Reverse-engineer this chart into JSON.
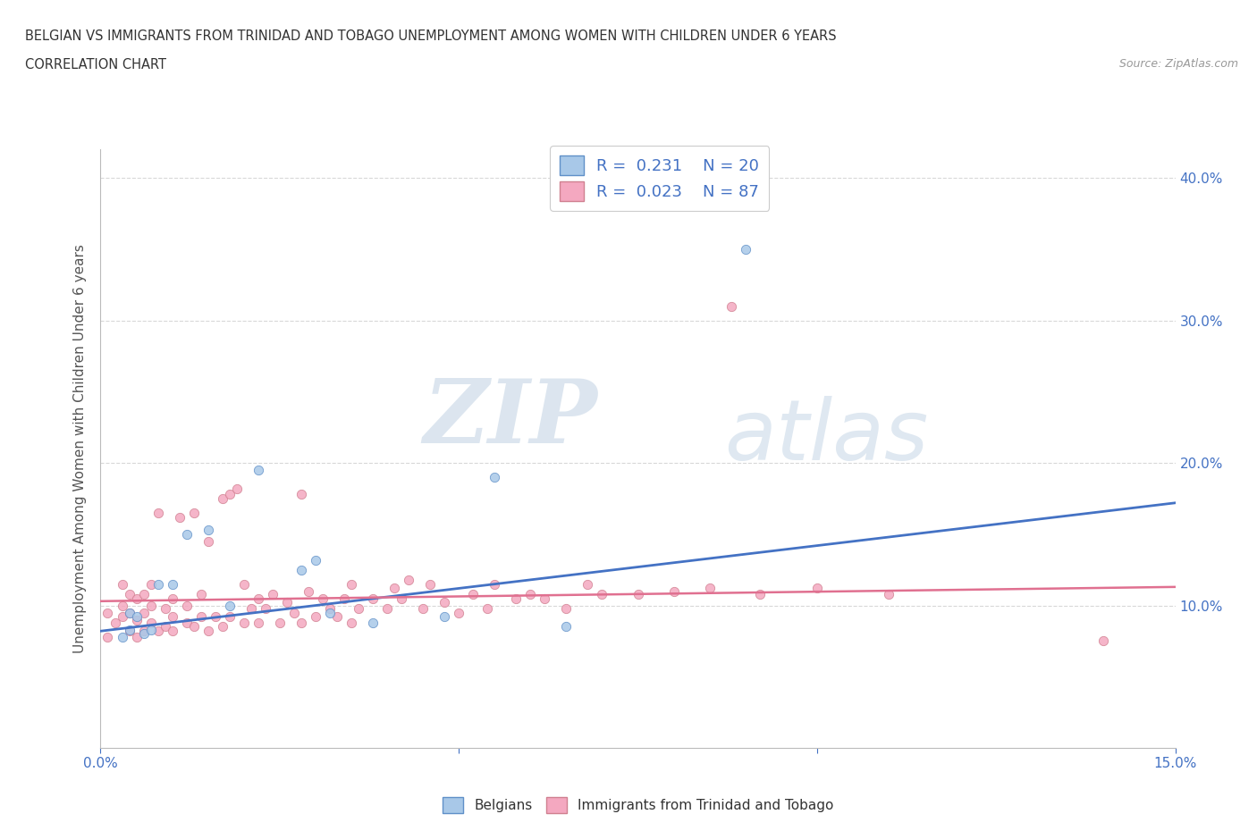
{
  "title_line1": "BELGIAN VS IMMIGRANTS FROM TRINIDAD AND TOBAGO UNEMPLOYMENT AMONG WOMEN WITH CHILDREN UNDER 6 YEARS",
  "title_line2": "CORRELATION CHART",
  "source_text": "Source: ZipAtlas.com",
  "ylabel": "Unemployment Among Women with Children Under 6 years",
  "xlim": [
    0.0,
    0.15
  ],
  "ylim": [
    0.0,
    0.42
  ],
  "belgian_color": "#a8c8e8",
  "tt_color": "#f4a8c0",
  "belgian_line_color": "#4472c4",
  "tt_line_color": "#e07090",
  "legend_R_belgian": "0.231",
  "legend_N_belgian": "20",
  "legend_R_tt": "0.023",
  "legend_N_tt": "87",
  "watermark_zip": "ZIP",
  "watermark_atlas": "atlas",
  "background_color": "#ffffff",
  "belgian_scatter_x": [
    0.003,
    0.004,
    0.004,
    0.005,
    0.006,
    0.007,
    0.008,
    0.01,
    0.012,
    0.015,
    0.018,
    0.022,
    0.028,
    0.03,
    0.032,
    0.038,
    0.048,
    0.055,
    0.065,
    0.09
  ],
  "belgian_scatter_y": [
    0.078,
    0.083,
    0.095,
    0.092,
    0.08,
    0.083,
    0.115,
    0.115,
    0.15,
    0.153,
    0.1,
    0.195,
    0.125,
    0.132,
    0.095,
    0.088,
    0.092,
    0.19,
    0.085,
    0.35
  ],
  "tt_scatter_x": [
    0.001,
    0.001,
    0.002,
    0.003,
    0.003,
    0.003,
    0.004,
    0.004,
    0.004,
    0.005,
    0.005,
    0.005,
    0.006,
    0.006,
    0.006,
    0.007,
    0.007,
    0.007,
    0.008,
    0.008,
    0.009,
    0.009,
    0.01,
    0.01,
    0.01,
    0.011,
    0.012,
    0.012,
    0.013,
    0.013,
    0.014,
    0.014,
    0.015,
    0.015,
    0.016,
    0.017,
    0.017,
    0.018,
    0.018,
    0.019,
    0.02,
    0.02,
    0.021,
    0.022,
    0.022,
    0.023,
    0.024,
    0.025,
    0.026,
    0.027,
    0.028,
    0.028,
    0.029,
    0.03,
    0.031,
    0.032,
    0.033,
    0.034,
    0.035,
    0.035,
    0.036,
    0.038,
    0.04,
    0.041,
    0.042,
    0.043,
    0.045,
    0.046,
    0.048,
    0.05,
    0.052,
    0.054,
    0.055,
    0.058,
    0.06,
    0.062,
    0.065,
    0.068,
    0.07,
    0.075,
    0.08,
    0.085,
    0.088,
    0.092,
    0.1,
    0.11,
    0.14
  ],
  "tt_scatter_y": [
    0.078,
    0.095,
    0.088,
    0.092,
    0.1,
    0.115,
    0.082,
    0.095,
    0.108,
    0.078,
    0.09,
    0.105,
    0.082,
    0.095,
    0.108,
    0.088,
    0.1,
    0.115,
    0.082,
    0.165,
    0.085,
    0.098,
    0.082,
    0.092,
    0.105,
    0.162,
    0.088,
    0.1,
    0.085,
    0.165,
    0.092,
    0.108,
    0.082,
    0.145,
    0.092,
    0.085,
    0.175,
    0.092,
    0.178,
    0.182,
    0.088,
    0.115,
    0.098,
    0.088,
    0.105,
    0.098,
    0.108,
    0.088,
    0.102,
    0.095,
    0.088,
    0.178,
    0.11,
    0.092,
    0.105,
    0.098,
    0.092,
    0.105,
    0.088,
    0.115,
    0.098,
    0.105,
    0.098,
    0.112,
    0.105,
    0.118,
    0.098,
    0.115,
    0.102,
    0.095,
    0.108,
    0.098,
    0.115,
    0.105,
    0.108,
    0.105,
    0.098,
    0.115,
    0.108,
    0.108,
    0.11,
    0.112,
    0.31,
    0.108,
    0.112,
    0.108,
    0.075
  ],
  "belgian_line_x0": 0.0,
  "belgian_line_y0": 0.082,
  "belgian_line_x1": 0.15,
  "belgian_line_y1": 0.172,
  "tt_line_x0": 0.0,
  "tt_line_y0": 0.103,
  "tt_line_x1": 0.15,
  "tt_line_y1": 0.113
}
